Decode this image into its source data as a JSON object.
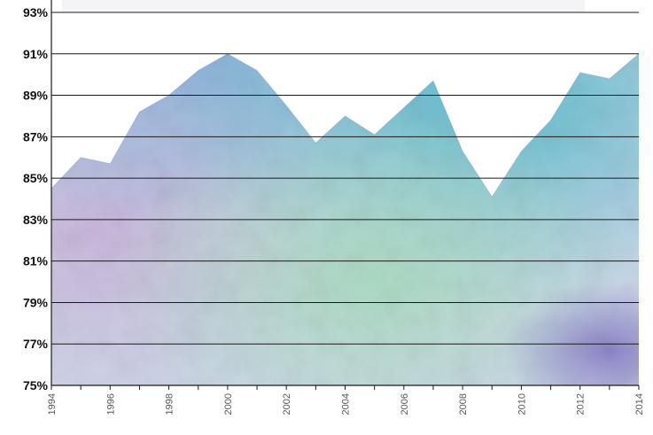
{
  "chart_data": {
    "type": "area",
    "title": "",
    "xlabel": "",
    "ylabel": "",
    "x": [
      1994,
      1995,
      1996,
      1997,
      1998,
      1999,
      2000,
      2001,
      2002,
      2003,
      2004,
      2005,
      2006,
      2007,
      2008,
      2009,
      2010,
      2011,
      2012,
      2013,
      2014
    ],
    "x_tick_labels": [
      "1994",
      "1996",
      "1998",
      "2000",
      "2002",
      "2004",
      "2006",
      "2008",
      "2010",
      "2012",
      "2014"
    ],
    "y_tick_labels": [
      "75%",
      "77%",
      "79%",
      "81%",
      "83%",
      "85%",
      "87%",
      "89%",
      "91%",
      "93%"
    ],
    "series": [
      {
        "values": [
          84.5,
          86.0,
          85.7,
          88.2,
          89.0,
          90.2,
          91.0,
          90.2,
          88.5,
          86.7,
          88.0,
          87.1,
          88.4,
          89.7,
          86.3,
          84.1,
          86.3,
          87.8,
          90.1,
          89.8,
          91.0
        ]
      }
    ],
    "ylim": [
      75,
      93
    ],
    "xlim": [
      1994,
      2014
    ],
    "grid": true,
    "colors": {
      "grid": "#1a1a1a",
      "axis": "#1a1a1a",
      "fill_blue": "#7fa8d6",
      "fill_purple": "#c6b3da",
      "fill_teal": "#6fc3cf",
      "fill_green": "#9fd6b8",
      "fill_violet": "#8f86c9",
      "title": "#8b1a33"
    }
  }
}
